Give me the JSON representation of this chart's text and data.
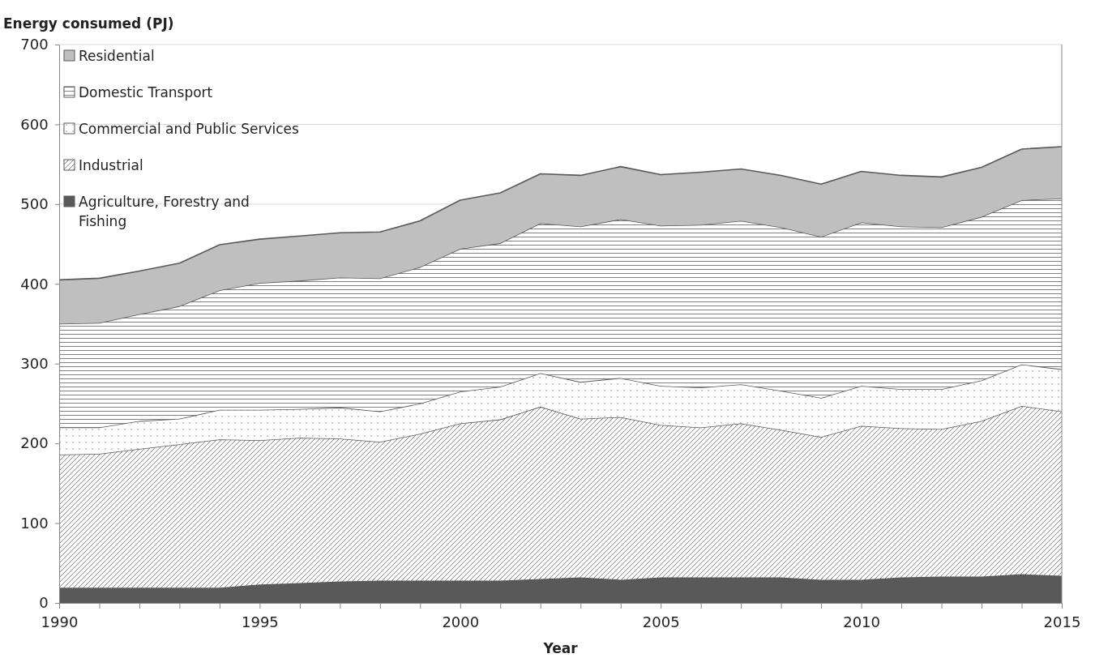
{
  "chart_data": {
    "type": "area",
    "stacked": true,
    "ylabel": "Energy consumed (PJ)",
    "xlabel": "Year",
    "x": [
      1990,
      1991,
      1992,
      1993,
      1994,
      1995,
      1996,
      1997,
      1998,
      1999,
      2000,
      2001,
      2002,
      2003,
      2004,
      2005,
      2006,
      2007,
      2008,
      2009,
      2010,
      2011,
      2012,
      2013,
      2014,
      2015
    ],
    "xlim": [
      1990,
      2015
    ],
    "xticks": [
      1990,
      {
        "value": 1991,
        "label": null
      },
      {
        "value": 1992,
        "label": null
      },
      {
        "value": 1993,
        "label": null
      },
      {
        "value": 1994,
        "label": null
      },
      1995,
      {
        "value": 1996,
        "label": null
      },
      {
        "value": 1997,
        "label": null
      },
      {
        "value": 1998,
        "label": null
      },
      {
        "value": 1999,
        "label": null
      },
      2000,
      {
        "value": 2001,
        "label": null
      },
      {
        "value": 2002,
        "label": null
      },
      {
        "value": 2003,
        "label": null
      },
      {
        "value": 2004,
        "label": null
      },
      2005,
      {
        "value": 2006,
        "label": null
      },
      {
        "value": 2007,
        "label": null
      },
      {
        "value": 2008,
        "label": null
      },
      {
        "value": 2009,
        "label": null
      },
      2010,
      {
        "value": 2011,
        "label": null
      },
      {
        "value": 2012,
        "label": null
      },
      {
        "value": 2013,
        "label": null
      },
      {
        "value": 2014,
        "label": null
      },
      2015
    ],
    "ylim": [
      0,
      700
    ],
    "yticks": [
      0,
      100,
      200,
      300,
      400,
      500,
      600,
      700
    ],
    "grid": "y",
    "legend": "top left",
    "series": [
      {
        "name": "Agriculture, Forestry and Fishing",
        "color": "#595959",
        "values": [
          19,
          19,
          19,
          19,
          19,
          23,
          25,
          27,
          28,
          28,
          28,
          28,
          30,
          32,
          29,
          32,
          32,
          32,
          32,
          29,
          29,
          32,
          33,
          33,
          36,
          34
        ]
      },
      {
        "name": "Industrial",
        "color": "#7f7f7f",
        "values": [
          167,
          168,
          174,
          180,
          186,
          181,
          182,
          179,
          174,
          184,
          197,
          202,
          216,
          199,
          204,
          191,
          188,
          193,
          185,
          179,
          193,
          187,
          185,
          195,
          211,
          206
        ]
      },
      {
        "name": "Commercial and Public Services",
        "color": "#8c8c8c",
        "values": [
          34,
          33,
          35,
          32,
          37,
          38,
          36,
          39,
          38,
          38,
          40,
          41,
          42,
          46,
          49,
          49,
          50,
          49,
          49,
          49,
          50,
          49,
          50,
          51,
          52,
          53
        ]
      },
      {
        "name": "Domestic Transport",
        "color": "#737373",
        "values": [
          130,
          131,
          134,
          141,
          150,
          159,
          161,
          163,
          167,
          171,
          179,
          180,
          188,
          195,
          199,
          201,
          204,
          205,
          205,
          202,
          205,
          204,
          203,
          205,
          206,
          214
        ]
      },
      {
        "name": "Residential",
        "color": "#bfbfbf",
        "values": [
          55,
          56,
          54,
          54,
          57,
          55,
          56,
          56,
          58,
          58,
          61,
          63,
          62,
          64,
          66,
          64,
          66,
          65,
          65,
          66,
          64,
          64,
          63,
          62,
          64,
          65
        ]
      }
    ]
  }
}
